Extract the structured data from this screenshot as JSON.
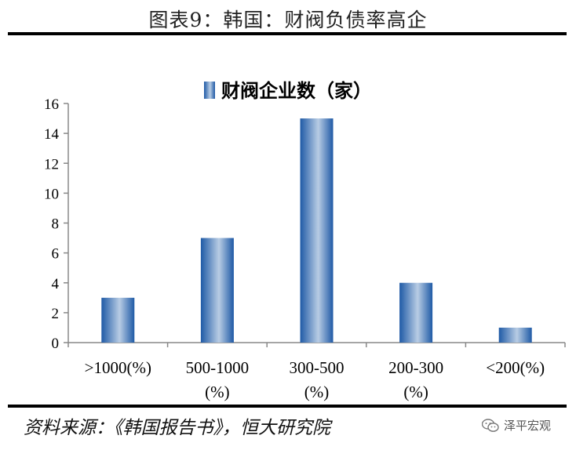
{
  "header": {
    "title": "图表9：韩国：财阀负债率高企"
  },
  "footer": {
    "source": "资料来源：《韩国报告书》，恒大研究院",
    "brand": "泽平宏观"
  },
  "colors": {
    "bar_dark": "#1f5aa6",
    "bar_light": "#b8cce4",
    "axis": "#888888"
  },
  "chart_data": {
    "type": "bar",
    "categories": [
      ">1000(%)",
      "500-1000\n(%)",
      "300-500\n(%)",
      "200-300\n(%)",
      "<200(%)"
    ],
    "series": [
      {
        "name": "财阀企业数（家）",
        "values": [
          3,
          7,
          15,
          4,
          1
        ]
      }
    ],
    "ylim": [
      0,
      16
    ],
    "yticks": [
      0,
      2,
      4,
      6,
      8,
      10,
      12,
      14,
      16
    ],
    "legend": "top-center",
    "grid": false
  }
}
